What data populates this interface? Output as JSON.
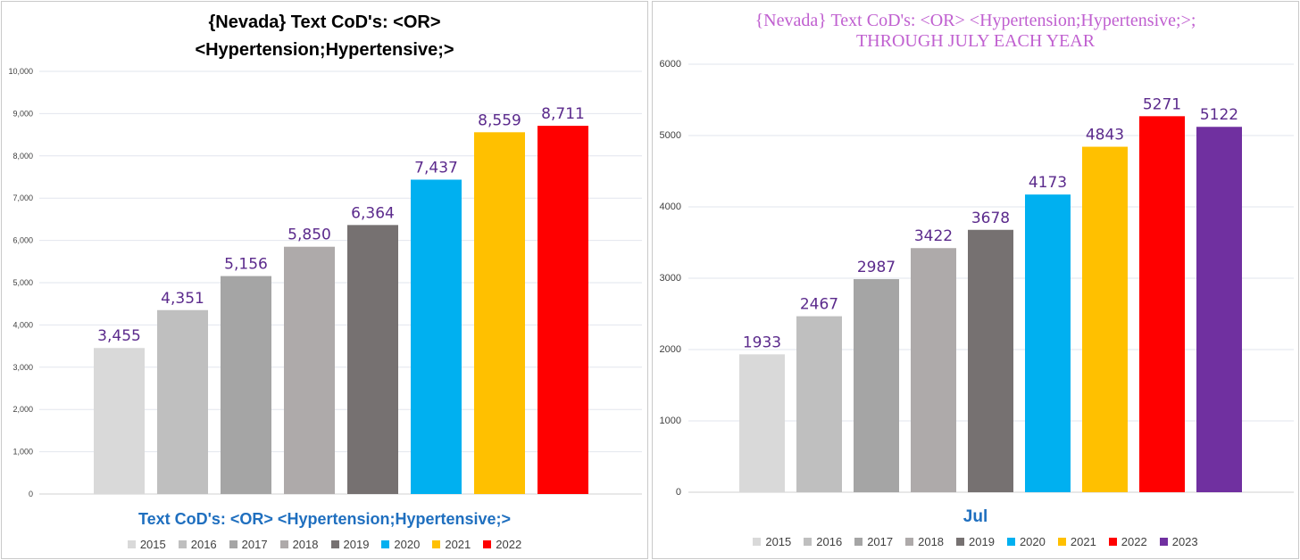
{
  "chart_data": [
    {
      "type": "bar",
      "title": "{Nevada}  Text CoD's: <OR> <Hypertension;Hypertensive;>",
      "title_lines": [
        "{Nevada}  Text CoD's: <OR>",
        "<Hypertension;Hypertensive;>"
      ],
      "xlabel": "Text CoD's: <OR> <Hypertension;Hypertensive;>",
      "ylabel": "",
      "ylim": [
        0,
        10000
      ],
      "yticks": [
        "0",
        "1,000",
        "2,000",
        "3,000",
        "4,000",
        "5,000",
        "6,000",
        "7,000",
        "8,000",
        "9,000",
        "10,000"
      ],
      "grid": true,
      "legend_position": "bottom",
      "series": [
        {
          "name": "2015",
          "value": 3455,
          "label": "3,455",
          "color": "#d9d9d9"
        },
        {
          "name": "2016",
          "value": 4351,
          "label": "4,351",
          "color": "#bfbfbf"
        },
        {
          "name": "2017",
          "value": 5156,
          "label": "5,156",
          "color": "#a5a5a5"
        },
        {
          "name": "2018",
          "value": 5850,
          "label": "5,850",
          "color": "#aeaaaa"
        },
        {
          "name": "2019",
          "value": 6364,
          "label": "6,364",
          "color": "#767171"
        },
        {
          "name": "2020",
          "value": 7437,
          "label": "7,437",
          "color": "#00b0f0"
        },
        {
          "name": "2021",
          "value": 8559,
          "label": "8,559",
          "color": "#ffc000"
        },
        {
          "name": "2022",
          "value": 8711,
          "label": "8,711",
          "color": "#ff0000"
        }
      ]
    },
    {
      "type": "bar",
      "title": "{Nevada}   Text CoD's: <OR> <Hypertension;Hypertensive;>; THROUGH JULY EACH YEAR",
      "title_lines": [
        "{Nevada}   Text CoD's: <OR> <Hypertension;Hypertensive;>;",
        "THROUGH JULY EACH YEAR"
      ],
      "xlabel": "Jul",
      "ylabel": "",
      "ylim": [
        0,
        6000
      ],
      "yticks": [
        "0",
        "1000",
        "2000",
        "3000",
        "4000",
        "5000",
        "6000"
      ],
      "grid": true,
      "legend_position": "bottom",
      "series": [
        {
          "name": "2015",
          "value": 1933,
          "label": "1933",
          "color": "#d9d9d9"
        },
        {
          "name": "2016",
          "value": 2467,
          "label": "2467",
          "color": "#bfbfbf"
        },
        {
          "name": "2017",
          "value": 2987,
          "label": "2987",
          "color": "#a5a5a5"
        },
        {
          "name": "2018",
          "value": 3422,
          "label": "3422",
          "color": "#aeaaaa"
        },
        {
          "name": "2019",
          "value": 3678,
          "label": "3678",
          "color": "#767171"
        },
        {
          "name": "2020",
          "value": 4173,
          "label": "4173",
          "color": "#00b0f0"
        },
        {
          "name": "2021",
          "value": 4843,
          "label": "4843",
          "color": "#ffc000"
        },
        {
          "name": "2022",
          "value": 5271,
          "label": "5271",
          "color": "#ff0000"
        },
        {
          "name": "2023",
          "value": 5122,
          "label": "5122",
          "color": "#7030a0"
        }
      ]
    }
  ],
  "data_label_color": "#5b2a8c"
}
